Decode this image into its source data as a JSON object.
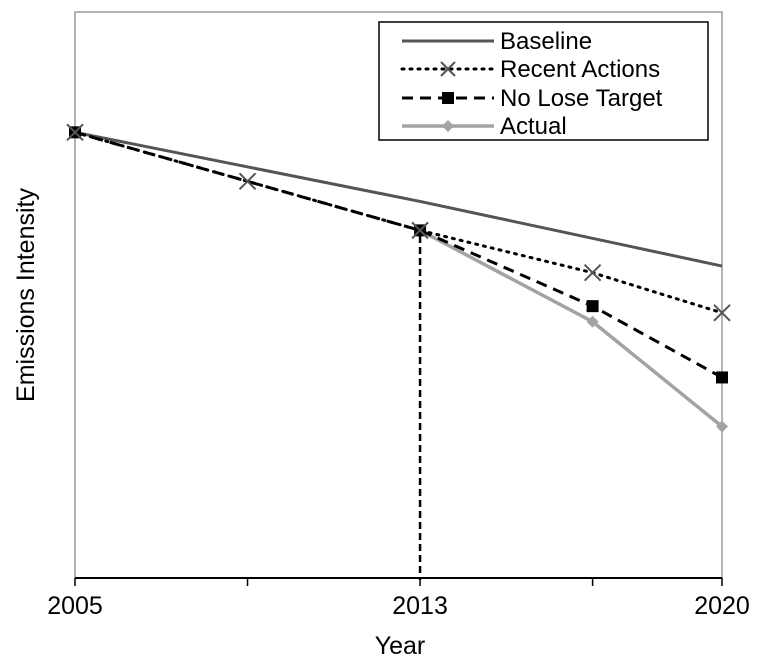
{
  "chart_data": {
    "type": "line",
    "xlabel": "Year",
    "ylabel": "Emissions Intensity",
    "x_ticks": [
      {
        "value": 2005,
        "label": "2005"
      },
      {
        "value": 2009,
        "label": ""
      },
      {
        "value": 2013,
        "label": "2013"
      },
      {
        "value": 2017,
        "label": ""
      },
      {
        "value": 2020,
        "label": "2020"
      }
    ],
    "xlim": [
      2005,
      2020
    ],
    "ylim": [
      0,
      100
    ],
    "y_tick_labels": false,
    "grid": false,
    "legend_position": "top-right",
    "reference_line": {
      "x": 2013,
      "style": "dashed",
      "color": "#000000"
    },
    "series": [
      {
        "name": "Baseline",
        "color": "#555555",
        "dash": "solid",
        "marker": "none",
        "points": [
          {
            "x": 2005,
            "y": 100
          },
          {
            "x": 2013,
            "y": 84.5
          },
          {
            "x": 2020,
            "y": 70
          }
        ]
      },
      {
        "name": "Recent Actions",
        "color": "#000000",
        "dash": "dotted",
        "marker": "x",
        "marker_color": "#555555",
        "points": [
          {
            "x": 2005,
            "y": 100
          },
          {
            "x": 2009,
            "y": 89
          },
          {
            "x": 2013,
            "y": 78
          },
          {
            "x": 2017,
            "y": 68.5
          },
          {
            "x": 2020,
            "y": 59.5
          }
        ]
      },
      {
        "name": "No Lose Target",
        "color": "#000000",
        "dash": "dashed",
        "marker": "square",
        "marker_color": "#000000",
        "points": [
          {
            "x": 2005,
            "y": 100
          },
          {
            "x": 2013,
            "y": 78
          },
          {
            "x": 2017,
            "y": 61
          },
          {
            "x": 2020,
            "y": 45
          }
        ]
      },
      {
        "name": "Actual",
        "color": "#a0a3a8",
        "dash": "solid",
        "marker": "diamond",
        "marker_color": "#a0a3a8",
        "points": [
          {
            "x": 2013,
            "y": 78
          },
          {
            "x": 2017,
            "y": 57.5
          },
          {
            "x": 2020,
            "y": 34
          }
        ]
      }
    ]
  }
}
